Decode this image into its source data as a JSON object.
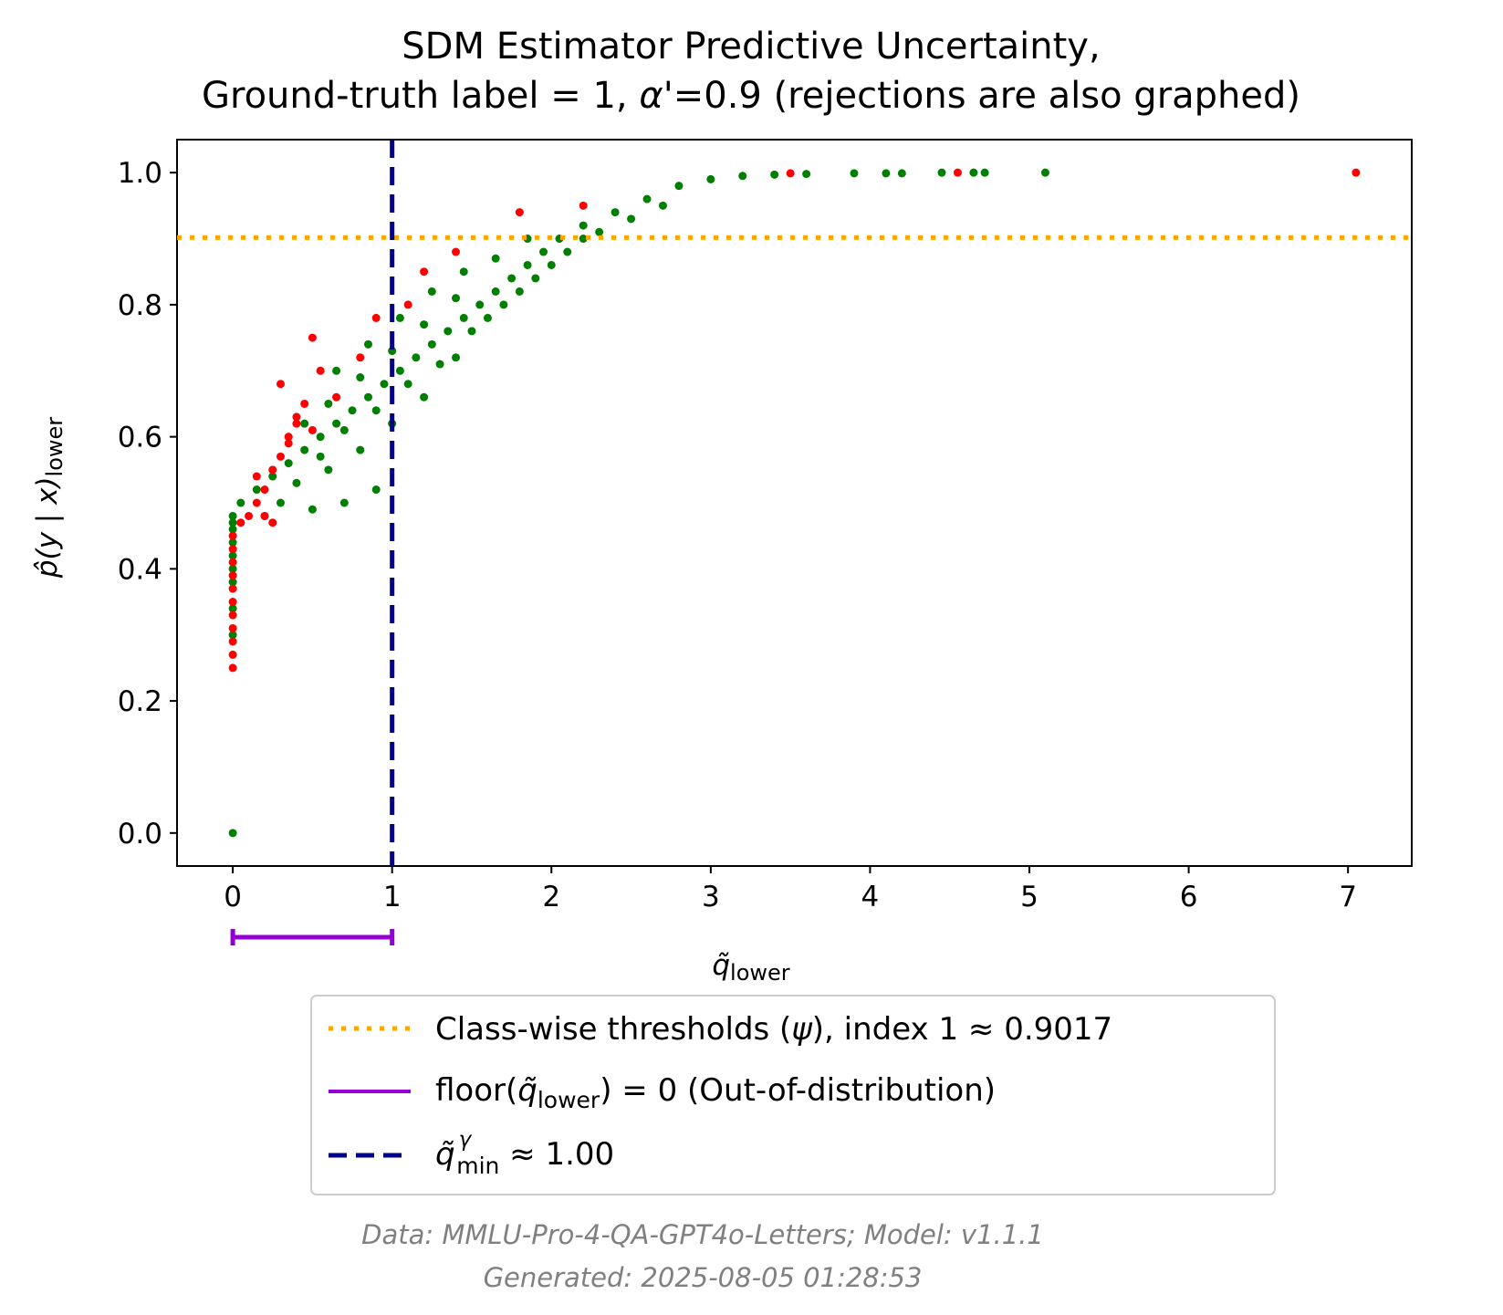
{
  "chart_data": {
    "type": "scatter",
    "title_line1": "SDM Estimator Predictive Uncertainty,",
    "title_line2_prefix": "Ground-truth label = 1, ",
    "title_alpha_symbol": "α",
    "title_line2_suffix": "'=0.9 (rejections are also graphed)",
    "xlabel_base": "q̃",
    "xlabel_sub": "lower",
    "ylabel_main": "p̂(y | x)",
    "ylabel_sub": "lower",
    "xlim": [
      -0.35,
      7.4
    ],
    "ylim": [
      -0.05,
      1.05
    ],
    "xticks": [
      0,
      1,
      2,
      3,
      4,
      5,
      6,
      7
    ],
    "yticks": [
      0.0,
      0.2,
      0.4,
      0.6,
      0.8,
      1.0
    ],
    "ytick_labels": [
      "0.0",
      "0.2",
      "0.4",
      "0.6",
      "0.8",
      "1.0"
    ],
    "xtick_labels": [
      "0",
      "1",
      "2",
      "3",
      "4",
      "5",
      "6",
      "7"
    ],
    "grid": false,
    "colors": {
      "correct": "#008000",
      "incorrect": "#ff0000",
      "threshold": "#ffa500",
      "qmin_line": "#00008b",
      "ood_bracket": "#9400d3"
    },
    "threshold_value": 0.9017,
    "qmin_value": 1.0,
    "ood_range": [
      0,
      1
    ],
    "series": [
      {
        "color_key": "correct",
        "points": [
          [
            0,
            0
          ],
          [
            0,
            0.3
          ],
          [
            0,
            0.34
          ],
          [
            0,
            0.38
          ],
          [
            0,
            0.4
          ],
          [
            0,
            0.42
          ],
          [
            0,
            0.44
          ],
          [
            0,
            0.46
          ],
          [
            0,
            0.47
          ],
          [
            0,
            0.48
          ],
          [
            0.05,
            0.5
          ],
          [
            0.15,
            0.52
          ],
          [
            0.25,
            0.54
          ],
          [
            0.35,
            0.56
          ],
          [
            0.45,
            0.58
          ],
          [
            0.55,
            0.6
          ],
          [
            0.65,
            0.62
          ],
          [
            0.75,
            0.64
          ],
          [
            0.85,
            0.66
          ],
          [
            0.95,
            0.68
          ],
          [
            1.05,
            0.7
          ],
          [
            1.15,
            0.72
          ],
          [
            1.25,
            0.74
          ],
          [
            1.35,
            0.76
          ],
          [
            1.45,
            0.78
          ],
          [
            1.55,
            0.8
          ],
          [
            1.65,
            0.82
          ],
          [
            1.75,
            0.84
          ],
          [
            1.85,
            0.86
          ],
          [
            1.95,
            0.88
          ],
          [
            2.05,
            0.9
          ],
          [
            2.2,
            0.92
          ],
          [
            2.4,
            0.94
          ],
          [
            2.6,
            0.96
          ],
          [
            2.8,
            0.98
          ],
          [
            3.0,
            0.99
          ],
          [
            3.2,
            0.995
          ],
          [
            3.4,
            0.997
          ],
          [
            3.6,
            0.998
          ],
          [
            3.9,
            0.999
          ],
          [
            4.1,
            0.999
          ],
          [
            4.2,
            0.999
          ],
          [
            4.45,
            1.0
          ],
          [
            4.65,
            1.0
          ],
          [
            4.72,
            1.0
          ],
          [
            5.1,
            1.0
          ],
          [
            0.3,
            0.5
          ],
          [
            0.5,
            0.49
          ],
          [
            0.7,
            0.5
          ],
          [
            0.9,
            0.52
          ],
          [
            0.6,
            0.55
          ],
          [
            0.8,
            0.58
          ],
          [
            1.0,
            0.62
          ],
          [
            1.2,
            0.66
          ],
          [
            1.4,
            0.72
          ],
          [
            1.6,
            0.78
          ],
          [
            1.8,
            0.82
          ],
          [
            2.0,
            0.86
          ],
          [
            2.2,
            0.9
          ],
          [
            0.4,
            0.53
          ],
          [
            0.55,
            0.57
          ],
          [
            0.7,
            0.61
          ],
          [
            0.9,
            0.64
          ],
          [
            1.1,
            0.68
          ],
          [
            1.3,
            0.71
          ],
          [
            1.5,
            0.76
          ],
          [
            1.7,
            0.8
          ],
          [
            1.9,
            0.84
          ],
          [
            2.1,
            0.88
          ],
          [
            2.3,
            0.91
          ],
          [
            2.5,
            0.93
          ],
          [
            2.7,
            0.95
          ],
          [
            0.2,
            0.48
          ],
          [
            0.45,
            0.62
          ],
          [
            0.65,
            0.7
          ],
          [
            0.85,
            0.74
          ],
          [
            1.05,
            0.78
          ],
          [
            1.25,
            0.82
          ],
          [
            1.45,
            0.85
          ],
          [
            1.65,
            0.87
          ],
          [
            1.85,
            0.9
          ],
          [
            0.6,
            0.65
          ],
          [
            0.8,
            0.69
          ],
          [
            1.0,
            0.73
          ],
          [
            1.2,
            0.77
          ],
          [
            1.4,
            0.81
          ]
        ]
      },
      {
        "color_key": "incorrect",
        "points": [
          [
            0,
            0.25
          ],
          [
            0,
            0.27
          ],
          [
            0,
            0.29
          ],
          [
            0,
            0.31
          ],
          [
            0,
            0.33
          ],
          [
            0,
            0.35
          ],
          [
            0,
            0.37
          ],
          [
            0,
            0.39
          ],
          [
            0,
            0.41
          ],
          [
            0,
            0.43
          ],
          [
            0,
            0.45
          ],
          [
            0.05,
            0.47
          ],
          [
            0.1,
            0.48
          ],
          [
            0.15,
            0.5
          ],
          [
            0.2,
            0.52
          ],
          [
            0.25,
            0.55
          ],
          [
            0.3,
            0.57
          ],
          [
            0.35,
            0.6
          ],
          [
            0.4,
            0.62
          ],
          [
            0.45,
            0.65
          ],
          [
            0.5,
            0.75
          ],
          [
            0.3,
            0.68
          ],
          [
            0.2,
            0.48
          ],
          [
            0.25,
            0.47
          ],
          [
            0.4,
            0.63
          ],
          [
            0.55,
            0.7
          ],
          [
            0.65,
            0.66
          ],
          [
            0.8,
            0.72
          ],
          [
            0.9,
            0.78
          ],
          [
            1.1,
            0.8
          ],
          [
            1.2,
            0.85
          ],
          [
            1.4,
            0.88
          ],
          [
            1.8,
            0.94
          ],
          [
            2.2,
            0.95
          ],
          [
            3.5,
            0.999
          ],
          [
            4.55,
            1.0
          ],
          [
            7.05,
            1.0
          ],
          [
            0.15,
            0.54
          ],
          [
            0.35,
            0.59
          ],
          [
            0.5,
            0.61
          ]
        ]
      }
    ]
  },
  "legend": {
    "items": [
      {
        "label_prefix": "Class-wise thresholds (",
        "label_symbol": "ψ",
        "label_suffix": "), index 1 ≈ 0.9017"
      },
      {
        "label_prefix": "floor(",
        "label_base": "q̃",
        "label_sub": "lower",
        "label_suffix": ") = 0 (Out-of-distribution)"
      },
      {
        "label_base": "q̃",
        "label_sup": "γ",
        "label_sub": "min",
        "label_suffix": " ≈ 1.00"
      }
    ]
  },
  "footer": {
    "line1": "Data: MMLU-Pro-4-QA-GPT4o-Letters; Model: v1.1.1",
    "line2": "Generated: 2025-08-05 01:28:53"
  }
}
